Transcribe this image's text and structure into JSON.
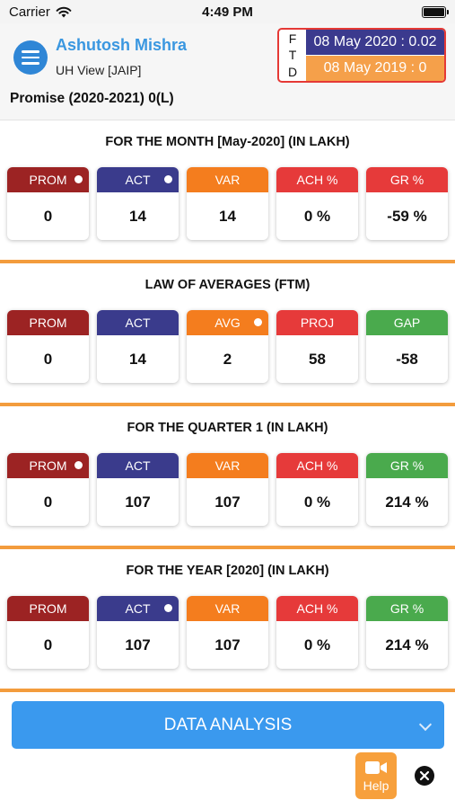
{
  "status_bar": {
    "carrier": "Carrier",
    "time": "4:49 PM"
  },
  "header": {
    "user_name": "Ashutosh Mishra",
    "user_view": "UH View [JAIP]",
    "promise_label": "Promise (2020-2021)",
    "promise_value": "0(L)",
    "ftd": {
      "letters": [
        "F",
        "T",
        "D"
      ],
      "current": "08 May 2020 : 0.02",
      "previous": "08 May 2019 : 0"
    }
  },
  "sections": [
    {
      "title": "FOR THE MONTH [May-2020] (IN LAKH)",
      "cards": [
        {
          "label": "PROM",
          "value": "0",
          "color": "#9c2323",
          "dot": true
        },
        {
          "label": "ACT",
          "value": "14",
          "color": "#3a3b8c",
          "dot": true
        },
        {
          "label": "VAR",
          "value": "14",
          "color": "#f47d1e",
          "dot": false
        },
        {
          "label": "ACH %",
          "value": "0 %",
          "color": "#e63a3a",
          "dot": false
        },
        {
          "label": "GR %",
          "value": "-59 %",
          "color": "#e63a3a",
          "dot": false
        }
      ]
    },
    {
      "title": "LAW OF AVERAGES (FTM)",
      "cards": [
        {
          "label": "PROM",
          "value": "0",
          "color": "#9c2323",
          "dot": false
        },
        {
          "label": "ACT",
          "value": "14",
          "color": "#3a3b8c",
          "dot": false
        },
        {
          "label": "AVG",
          "value": "2",
          "color": "#f47d1e",
          "dot": true
        },
        {
          "label": "PROJ",
          "value": "58",
          "color": "#e63a3a",
          "dot": false
        },
        {
          "label": "GAP",
          "value": "-58",
          "color": "#4aaa4d",
          "dot": false
        }
      ]
    },
    {
      "title": "FOR THE QUARTER 1 (IN LAKH)",
      "cards": [
        {
          "label": "PROM",
          "value": "0",
          "color": "#9c2323",
          "dot": true
        },
        {
          "label": "ACT",
          "value": "107",
          "color": "#3a3b8c",
          "dot": false
        },
        {
          "label": "VAR",
          "value": "107",
          "color": "#f47d1e",
          "dot": false
        },
        {
          "label": "ACH %",
          "value": "0 %",
          "color": "#e63a3a",
          "dot": false
        },
        {
          "label": "GR %",
          "value": "214 %",
          "color": "#4aaa4d",
          "dot": false
        }
      ]
    },
    {
      "title": "FOR THE YEAR [2020] (IN LAKH)",
      "cards": [
        {
          "label": "PROM",
          "value": "0",
          "color": "#9c2323",
          "dot": false
        },
        {
          "label": "ACT",
          "value": "107",
          "color": "#3a3b8c",
          "dot": true
        },
        {
          "label": "VAR",
          "value": "107",
          "color": "#f47d1e",
          "dot": false
        },
        {
          "label": "ACH %",
          "value": "0 %",
          "color": "#e63a3a",
          "dot": false
        },
        {
          "label": "GR %",
          "value": "214 %",
          "color": "#4aaa4d",
          "dot": false
        }
      ]
    }
  ],
  "data_analysis_label": "DATA ANALYSIS",
  "help_label": "Help",
  "icons": {
    "menu": "hamburger-menu-icon",
    "wifi": "wifi-icon",
    "battery": "battery-icon",
    "chevron": "chevron-down-icon",
    "video": "video-camera-icon",
    "close": "close-icon"
  }
}
